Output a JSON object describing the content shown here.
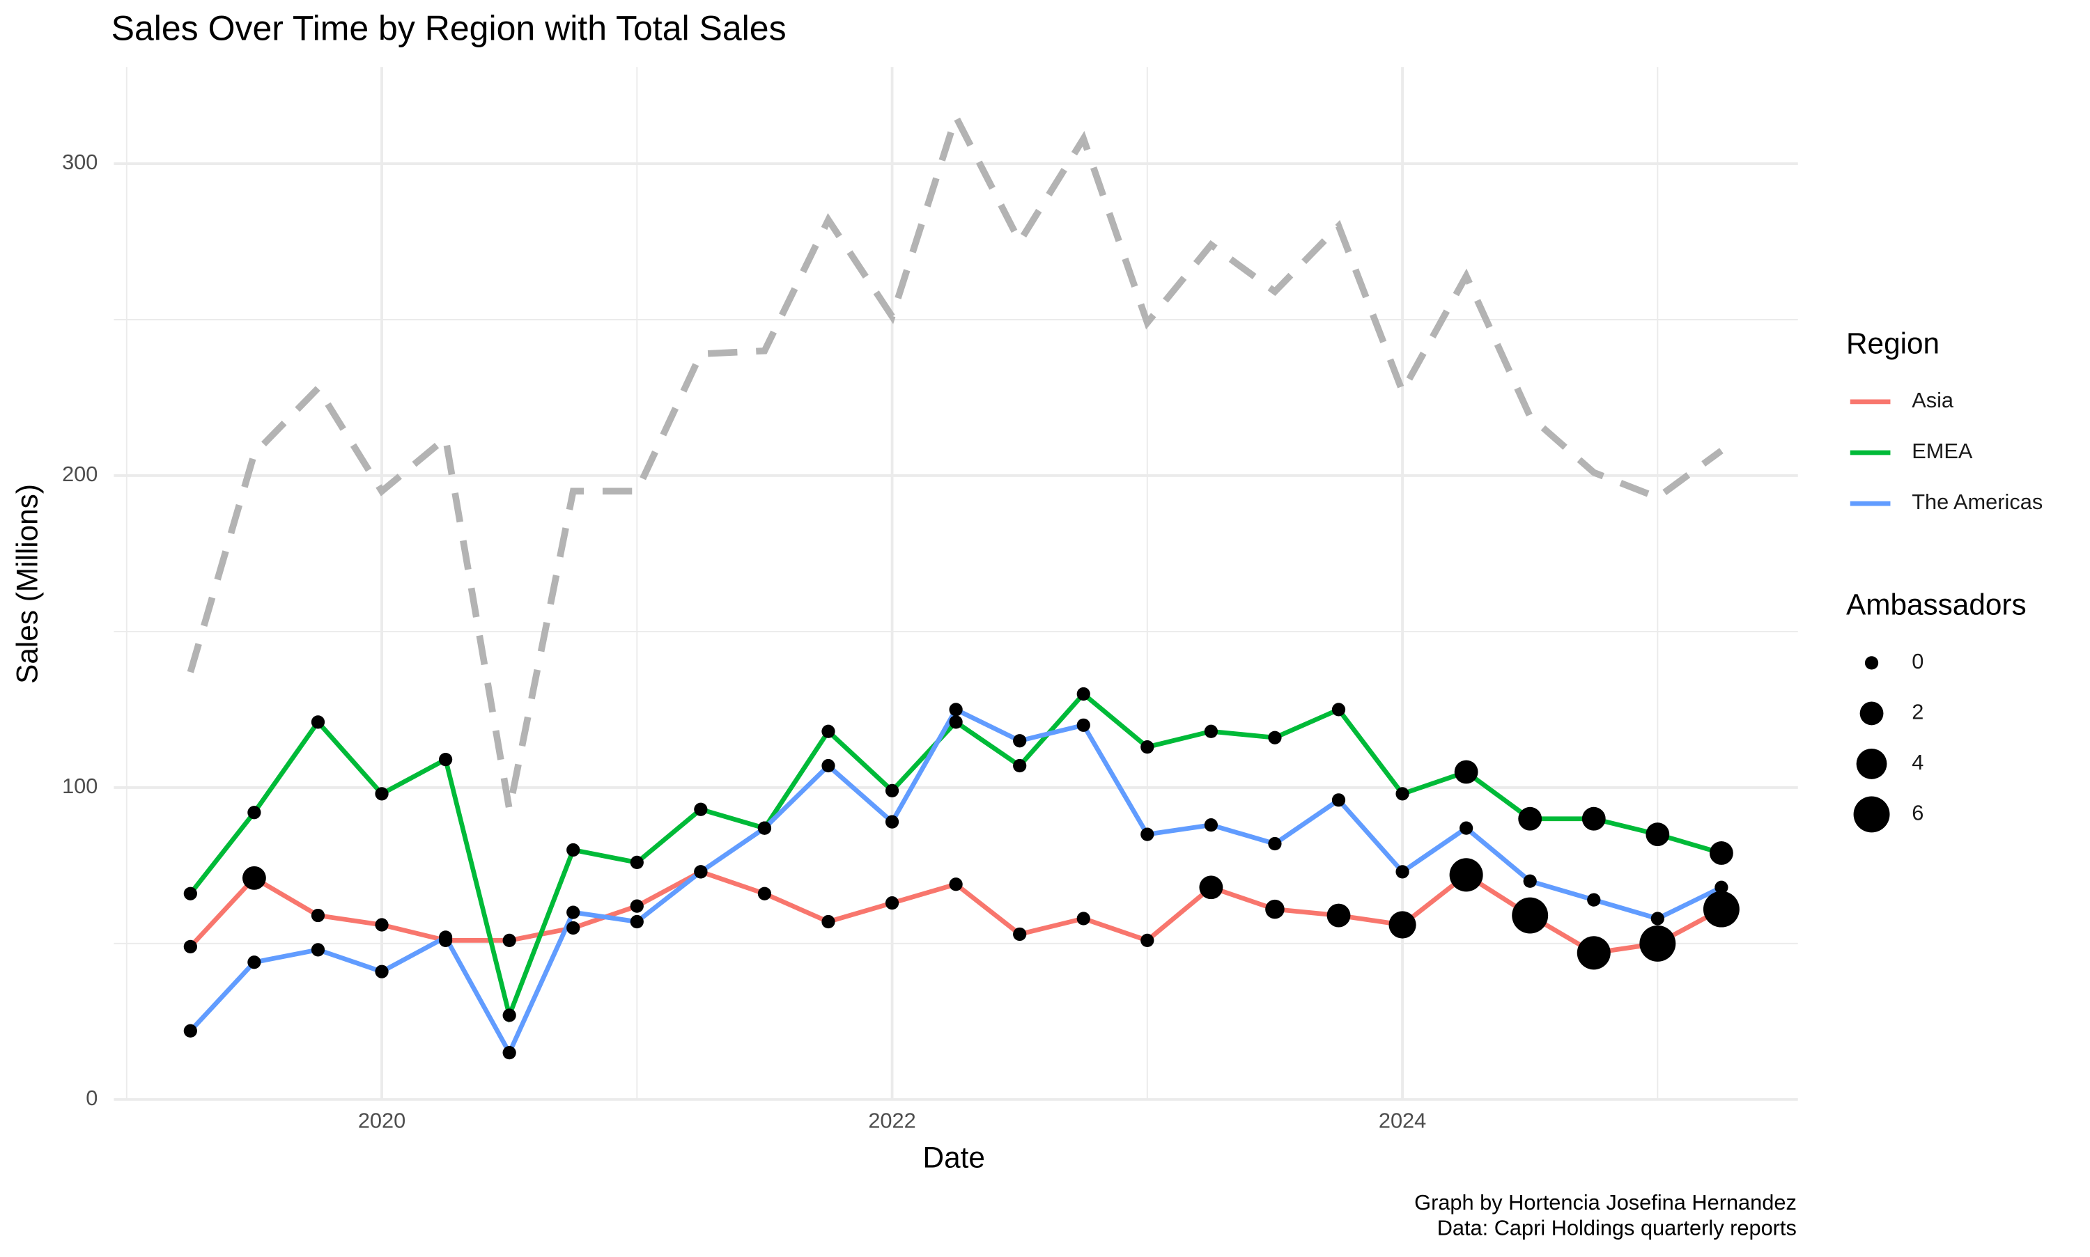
{
  "chart_data": {
    "type": "line",
    "title": "Sales Over Time by Region with Total Sales",
    "x_label": "Date",
    "y_label": "Sales (Millions)",
    "caption": [
      "Graph by Hortencia Josefina Hernandez",
      "Data: Capri Holdings quarterly reports"
    ],
    "x": [
      2019.25,
      2019.5,
      2019.75,
      2020.0,
      2020.25,
      2020.5,
      2020.75,
      2021.0,
      2021.25,
      2021.5,
      2021.75,
      2022.0,
      2022.25,
      2022.5,
      2022.75,
      2023.0,
      2023.25,
      2023.5,
      2023.75,
      2024.0,
      2024.25,
      2024.5,
      2024.75,
      2025.0,
      2025.25
    ],
    "xlim": [
      2018.95,
      2025.55
    ],
    "xticks": [
      2020,
      2022,
      2024
    ],
    "x_minor_gridlines": [
      2019,
      2021,
      2023,
      2025
    ],
    "ylim": [
      0,
      331
    ],
    "yticks": [
      0,
      100,
      200,
      300
    ],
    "y_minor_gridlines": [
      50,
      150,
      250
    ],
    "grid": true,
    "legend_title": "Region",
    "size_legend_title": "Ambassadors",
    "size_legend": [
      0,
      2,
      4,
      6
    ],
    "point_color": "#000000",
    "series": [
      {
        "name": "Asia",
        "color": "#F8766D",
        "values": [
          49,
          71,
          59,
          56,
          51,
          51,
          55,
          62,
          73,
          66,
          57,
          63,
          69,
          53,
          58,
          51,
          68,
          61,
          59,
          56,
          72,
          59,
          47,
          50,
          61
        ],
        "ambassadors": [
          0,
          2,
          0,
          0,
          0,
          0,
          0,
          0,
          0,
          0,
          0,
          0,
          0,
          0,
          0,
          0,
          2,
          1,
          2,
          3,
          5,
          6,
          5,
          6,
          6
        ]
      },
      {
        "name": "EMEA",
        "color": "#00BA38",
        "values": [
          66,
          92,
          121,
          98,
          109,
          27,
          80,
          76,
          93,
          87,
          118,
          99,
          121,
          107,
          130,
          113,
          118,
          116,
          125,
          98,
          105,
          90,
          90,
          85,
          79
        ],
        "ambassadors": [
          0,
          0,
          0,
          0,
          0,
          0,
          0,
          0,
          0,
          0,
          0,
          0,
          0,
          0,
          0,
          0,
          0,
          0,
          0,
          0,
          2,
          2,
          2,
          2,
          2
        ]
      },
      {
        "name": "The Americas",
        "color": "#619CFF",
        "values": [
          22,
          44,
          48,
          41,
          52,
          15,
          60,
          57,
          73,
          87,
          107,
          89,
          125,
          115,
          120,
          85,
          88,
          82,
          96,
          73,
          87,
          70,
          64,
          58,
          68
        ],
        "ambassadors": [
          0,
          0,
          0,
          0,
          0,
          0,
          0,
          0,
          0,
          0,
          0,
          0,
          0,
          0,
          0,
          0,
          0,
          0,
          0,
          0,
          0,
          0,
          0,
          0,
          0
        ]
      }
    ],
    "total": {
      "color": "#b3b3b3",
      "dashed": true,
      "values": [
        137,
        207,
        228,
        195,
        212,
        93,
        195,
        195,
        239,
        240,
        282,
        251,
        315,
        275,
        308,
        249,
        274,
        259,
        280,
        227,
        264,
        219,
        201,
        193,
        208
      ]
    }
  }
}
